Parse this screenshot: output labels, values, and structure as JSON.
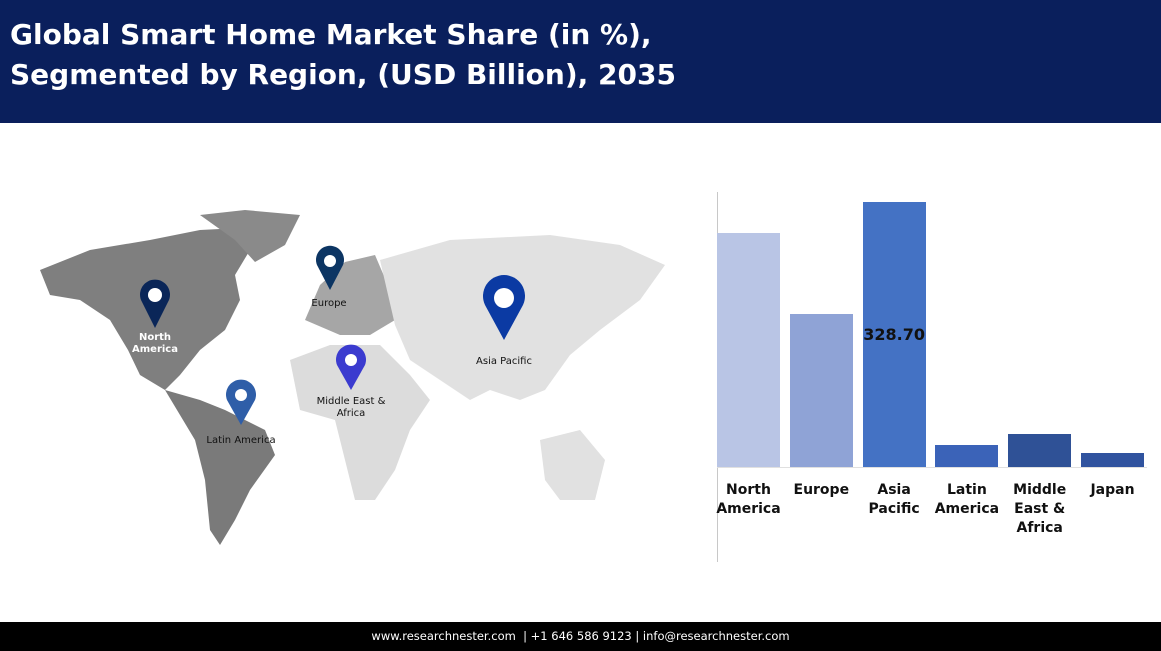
{
  "header": {
    "title": [
      "Global Smart Home Market Share (in %),",
      "Segmented by Region, (USD Billion), 2035"
    ]
  },
  "map": {
    "labels": [
      "North America",
      "Europe",
      "Asia Pacific",
      "Middle East & Africa",
      "Latin America"
    ]
  },
  "chart_data": {
    "type": "bar",
    "categories": [
      "North America",
      "Europe",
      "Asia Pacific",
      "Latin America",
      "Middle East & Africa",
      "Japan"
    ],
    "values": [
      290,
      190,
      328.7,
      27,
      41,
      17
    ],
    "value_labels": [
      null,
      null,
      "328.70",
      null,
      null,
      null
    ],
    "colors": [
      "#b9c5e5",
      "#8fa3d6",
      "#4472c4",
      "#3b63b8",
      "#2f5196",
      "#30539f"
    ]
  },
  "footer": {
    "text": "www.researchnester.com  | +1 646 586 9123 | info@researchnester.com"
  }
}
